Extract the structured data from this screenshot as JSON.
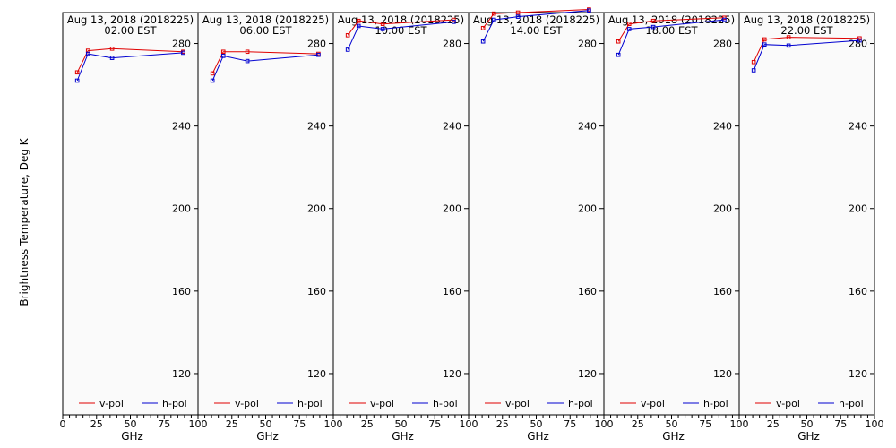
{
  "chart_data": {
    "type": "line",
    "ylabel": "Brightness Temperature, Deg K",
    "xlabel": "GHz",
    "xlim": [
      0,
      100
    ],
    "ylim": [
      100,
      295
    ],
    "xticks": [
      0,
      25,
      50,
      75,
      100
    ],
    "x_tick_labels": [
      "0",
      "25",
      "50",
      "75",
      "100"
    ],
    "yticks": [
      120,
      160,
      200,
      240,
      280
    ],
    "grid": false,
    "legend": "bottom",
    "colors": {
      "v-pol": "#e00000",
      "h-pol": "#0000d0"
    },
    "panels": [
      {
        "title_line1": "Aug 13, 2018 (2018225)",
        "title_line2": "02.00 EST",
        "x": [
          10.7,
          18.7,
          36.5,
          89
        ],
        "series": [
          {
            "name": "v-pol",
            "values": [
              266,
              276.5,
              277.5,
              276
            ]
          },
          {
            "name": "h-pol",
            "values": [
              262,
              275,
              273,
              275.5
            ]
          }
        ]
      },
      {
        "title_line1": "Aug 13, 2018 (2018225)",
        "title_line2": "06.00 EST",
        "x": [
          10.7,
          18.7,
          36.5,
          89
        ],
        "series": [
          {
            "name": "v-pol",
            "values": [
              265.5,
              276,
              276,
              275
            ]
          },
          {
            "name": "h-pol",
            "values": [
              262,
              274,
              271.5,
              274.5
            ]
          }
        ]
      },
      {
        "title_line1": "Aug 13, 2018 (2018225)",
        "title_line2": "10.00 EST",
        "x": [
          10.7,
          18.7,
          36.5,
          89
        ],
        "series": [
          {
            "name": "v-pol",
            "values": [
              284,
              291,
              289.5,
              291.5
            ]
          },
          {
            "name": "h-pol",
            "values": [
              277,
              288.5,
              287,
              290.5
            ]
          }
        ]
      },
      {
        "title_line1": "Aug 13, 2018 (2018225)",
        "title_line2": "14.00 EST",
        "x": [
          10.7,
          18.7,
          36.5,
          89
        ],
        "series": [
          {
            "name": "v-pol",
            "values": [
              287.5,
              294.5,
              295,
              296.5
            ]
          },
          {
            "name": "h-pol",
            "values": [
              281,
              291.5,
              293,
              296
            ]
          }
        ]
      },
      {
        "title_line1": "Aug 13, 2018 (2018225)",
        "title_line2": "18.00 EST",
        "x": [
          10.7,
          18.7,
          36.5,
          89
        ],
        "series": [
          {
            "name": "v-pol",
            "values": [
              281,
              289.5,
              291,
              292.5
            ]
          },
          {
            "name": "h-pol",
            "values": [
              274.5,
              287,
              288,
              291.5
            ]
          }
        ]
      },
      {
        "title_line1": "Aug 13, 2018 (2018225)",
        "title_line2": "22.00 EST",
        "x": [
          10.7,
          18.7,
          36.5,
          89
        ],
        "series": [
          {
            "name": "v-pol",
            "values": [
              271,
              282,
              283,
              282.5
            ]
          },
          {
            "name": "h-pol",
            "values": [
              267,
              279.5,
              279,
              281.5
            ]
          }
        ]
      }
    ]
  }
}
